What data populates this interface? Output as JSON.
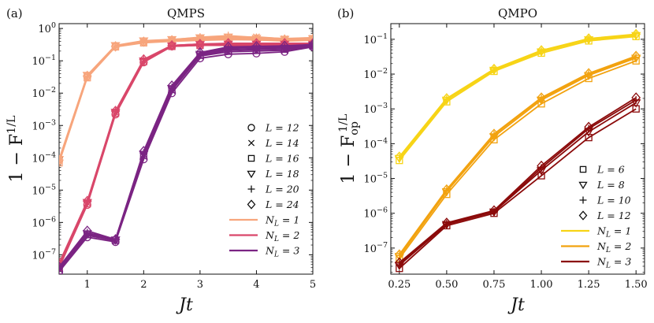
{
  "chart_data": [
    {
      "id": "a",
      "type": "line",
      "panel_label": "(a)",
      "title": "QMPS",
      "xlabel": "Jt",
      "ylabel": "1 − F^{1/L}",
      "ylabel_parts": {
        "base": "1 − F",
        "sup": "1/L"
      },
      "yscale": "log",
      "xlim": [
        0.5,
        5
      ],
      "ylim_exp": [
        -7.6,
        0.15
      ],
      "x_ticks": [
        1,
        2,
        3,
        4,
        5
      ],
      "x_tick_labels": [
        "1",
        "2",
        "3",
        "4",
        "5"
      ],
      "y_tick_exps": [
        -7,
        -6,
        -5,
        -4,
        -3,
        -2,
        -1,
        0
      ],
      "y_tick_labels": [
        "10^-7",
        "10^-6",
        "10^-5",
        "10^-4",
        "10^-3",
        "10^-2",
        "10^-1",
        "10^0"
      ],
      "x": [
        0.5,
        1,
        1.5,
        2,
        2.5,
        3,
        3.5,
        4,
        4.5,
        5
      ],
      "colors": {
        "1": "#f7a57c",
        "2": "#d9476a",
        "3": "#7b2483"
      },
      "series": [
        {
          "name": "NL=1, L=12",
          "NL": 1,
          "L": 12,
          "marker": "circle",
          "values": [
            8e-05,
            0.032,
            0.28,
            0.38,
            0.42,
            0.45,
            0.47,
            0.45,
            0.42,
            0.44
          ]
        },
        {
          "name": "NL=1, L=14",
          "NL": 1,
          "L": 14,
          "marker": "x",
          "values": [
            8.5e-05,
            0.035,
            0.29,
            0.4,
            0.44,
            0.5,
            0.52,
            0.55,
            0.48,
            0.5
          ]
        },
        {
          "name": "NL=1, L=16",
          "NL": 1,
          "L": 16,
          "marker": "square",
          "values": [
            7e-05,
            0.03,
            0.27,
            0.36,
            0.4,
            0.43,
            0.45,
            0.44,
            0.41,
            0.43
          ]
        },
        {
          "name": "NL=1, L=18",
          "NL": 1,
          "L": 18,
          "marker": "triangle",
          "values": [
            9e-05,
            0.036,
            0.3,
            0.42,
            0.46,
            0.52,
            0.55,
            0.5,
            0.47,
            0.49
          ]
        },
        {
          "name": "NL=1, L=20",
          "NL": 1,
          "L": 20,
          "marker": "plus",
          "values": [
            8e-05,
            0.033,
            0.29,
            0.41,
            0.45,
            0.54,
            0.6,
            0.53,
            0.49,
            0.52
          ]
        },
        {
          "name": "NL=1, L=24",
          "NL": 1,
          "L": 24,
          "marker": "diamond",
          "values": [
            8.5e-05,
            0.034,
            0.28,
            0.39,
            0.43,
            0.48,
            0.5,
            0.48,
            0.45,
            0.47
          ]
        },
        {
          "name": "NL=2, L=12",
          "NL": 2,
          "L": 12,
          "marker": "circle",
          "values": [
            4e-08,
            3.5e-06,
            0.0022,
            0.09,
            0.28,
            0.3,
            0.3,
            0.3,
            0.3,
            0.3
          ]
        },
        {
          "name": "NL=2, L=14",
          "NL": 2,
          "L": 14,
          "marker": "x",
          "values": [
            4.5e-08,
            4e-06,
            0.0025,
            0.1,
            0.29,
            0.31,
            0.32,
            0.32,
            0.32,
            0.32
          ]
        },
        {
          "name": "NL=2, L=16",
          "NL": 2,
          "L": 16,
          "marker": "square",
          "values": [
            4e-08,
            3.8e-06,
            0.0024,
            0.095,
            0.28,
            0.3,
            0.31,
            0.31,
            0.31,
            0.31
          ]
        },
        {
          "name": "NL=2, L=18",
          "NL": 2,
          "L": 18,
          "marker": "triangle",
          "values": [
            5e-08,
            4.2e-06,
            0.0026,
            0.1,
            0.29,
            0.32,
            0.33,
            0.33,
            0.33,
            0.33
          ]
        },
        {
          "name": "NL=2, L=20",
          "NL": 2,
          "L": 20,
          "marker": "plus",
          "values": [
            5e-08,
            4.4e-06,
            0.0027,
            0.11,
            0.3,
            0.33,
            0.34,
            0.34,
            0.34,
            0.34
          ]
        },
        {
          "name": "NL=2, L=24",
          "NL": 2,
          "L": 24,
          "marker": "diamond",
          "values": [
            5.5e-08,
            4.6e-06,
            0.0028,
            0.11,
            0.3,
            0.33,
            0.35,
            0.35,
            0.35,
            0.35
          ]
        },
        {
          "name": "NL=3, L=12",
          "NL": 3,
          "L": 12,
          "marker": "circle",
          "values": [
            3e-08,
            3.5e-07,
            2.5e-07,
            9e-05,
            0.01,
            0.12,
            0.16,
            0.17,
            0.19,
            0.27
          ]
        },
        {
          "name": "NL=3, L=14",
          "NL": 3,
          "L": 14,
          "marker": "x",
          "values": [
            3.5e-08,
            4e-07,
            2.7e-07,
            0.00011,
            0.012,
            0.14,
            0.19,
            0.2,
            0.21,
            0.28
          ]
        },
        {
          "name": "NL=3, L=16",
          "NL": 3,
          "L": 16,
          "marker": "square",
          "values": [
            3.2e-08,
            4.2e-07,
            2.8e-07,
            0.00012,
            0.013,
            0.15,
            0.21,
            0.22,
            0.23,
            0.29
          ]
        },
        {
          "name": "NL=3, L=18",
          "NL": 3,
          "L": 18,
          "marker": "triangle",
          "values": [
            3.8e-08,
            4.5e-07,
            2.9e-07,
            0.00013,
            0.014,
            0.16,
            0.23,
            0.24,
            0.25,
            0.3
          ]
        },
        {
          "name": "NL=3, L=20",
          "NL": 3,
          "L": 20,
          "marker": "plus",
          "values": [
            4e-08,
            4.8e-07,
            3e-07,
            0.00014,
            0.015,
            0.17,
            0.25,
            0.26,
            0.27,
            0.31
          ]
        },
        {
          "name": "NL=3, L=24",
          "NL": 3,
          "L": 24,
          "marker": "diamond",
          "values": [
            4.2e-08,
            5.5e-07,
            3e-07,
            0.00016,
            0.017,
            0.18,
            0.27,
            0.28,
            0.29,
            0.32
          ]
        }
      ],
      "legend": {
        "position": "lower-right",
        "markers": [
          {
            "marker": "circle",
            "label": "L = 12"
          },
          {
            "marker": "x",
            "label": "L = 14"
          },
          {
            "marker": "square",
            "label": "L = 16"
          },
          {
            "marker": "triangle",
            "label": "L = 18"
          },
          {
            "marker": "plus",
            "label": "L = 20"
          },
          {
            "marker": "diamond",
            "label": "L = 24"
          }
        ],
        "lines": [
          {
            "NL": 1,
            "label": "N_L = 1"
          },
          {
            "NL": 2,
            "label": "N_L = 2"
          },
          {
            "NL": 3,
            "label": "N_L = 3"
          }
        ]
      }
    },
    {
      "id": "b",
      "type": "line",
      "panel_label": "(b)",
      "title": "QMPO",
      "xlabel": "Jt",
      "ylabel": "1 − F_op^{1/L}",
      "ylabel_parts": {
        "base": "1 − F",
        "sub": "op",
        "sup": "1/L"
      },
      "yscale": "log",
      "xlim": [
        0.205,
        1.545
      ],
      "ylim_exp": [
        -7.75,
        -0.55
      ],
      "x_ticks": [
        0.25,
        0.5,
        0.75,
        1.0,
        1.25,
        1.5
      ],
      "x_tick_labels": [
        "0.25",
        "0.50",
        "0.75",
        "1.00",
        "1.25",
        "1.50"
      ],
      "y_tick_exps": [
        -7,
        -6,
        -5,
        -4,
        -3,
        -2,
        -1
      ],
      "y_tick_labels": [
        "10^-7",
        "10^-6",
        "10^-5",
        "10^-4",
        "10^-3",
        "10^-2",
        "10^-1"
      ],
      "x": [
        0.25,
        0.5,
        0.75,
        1.0,
        1.25,
        1.5
      ],
      "colors": {
        "1": "#f7d416",
        "2": "#f2a20f",
        "3": "#8b0a0a"
      },
      "series": [
        {
          "name": "NL=1, L=6",
          "NL": 1,
          "L": 6,
          "marker": "square",
          "values": [
            3.3e-05,
            0.0016,
            0.012,
            0.04,
            0.09,
            0.12
          ]
        },
        {
          "name": "NL=1, L=8",
          "NL": 1,
          "L": 8,
          "marker": "triangle",
          "values": [
            3.8e-05,
            0.0018,
            0.013,
            0.044,
            0.098,
            0.13
          ]
        },
        {
          "name": "NL=1, L=10",
          "NL": 1,
          "L": 10,
          "marker": "plus",
          "values": [
            4e-05,
            0.0019,
            0.0135,
            0.046,
            0.102,
            0.135
          ]
        },
        {
          "name": "NL=1, L=12",
          "NL": 1,
          "L": 12,
          "marker": "diamond",
          "values": [
            4.2e-05,
            0.002,
            0.014,
            0.048,
            0.105,
            0.14
          ]
        },
        {
          "name": "NL=2, L=6",
          "NL": 2,
          "L": 6,
          "marker": "square",
          "values": [
            5e-08,
            3.5e-06,
            0.00013,
            0.0014,
            0.0075,
            0.024
          ]
        },
        {
          "name": "NL=2, L=8",
          "NL": 2,
          "L": 8,
          "marker": "triangle",
          "values": [
            5.8e-08,
            4.2e-06,
            0.00016,
            0.0018,
            0.0092,
            0.029
          ]
        },
        {
          "name": "NL=2, L=10",
          "NL": 2,
          "L": 10,
          "marker": "plus",
          "values": [
            6.2e-08,
            4.6e-06,
            0.00018,
            0.002,
            0.01,
            0.031
          ]
        },
        {
          "name": "NL=2, L=12",
          "NL": 2,
          "L": 12,
          "marker": "diamond",
          "values": [
            6.5e-08,
            4.8e-06,
            0.00019,
            0.0021,
            0.0105,
            0.033
          ]
        },
        {
          "name": "NL=3, L=6",
          "NL": 3,
          "L": 6,
          "marker": "square",
          "values": [
            2.6e-08,
            4.4e-07,
            1e-06,
            1.2e-05,
            0.00015,
            0.001
          ]
        },
        {
          "name": "NL=3, L=8",
          "NL": 3,
          "L": 8,
          "marker": "triangle",
          "values": [
            3.2e-08,
            4.8e-07,
            1.1e-06,
            1.7e-05,
            0.00022,
            0.0015
          ]
        },
        {
          "name": "NL=3, L=10",
          "NL": 3,
          "L": 10,
          "marker": "plus",
          "values": [
            3.5e-08,
            5e-07,
            1.1e-06,
            2e-05,
            0.00027,
            0.0018
          ]
        },
        {
          "name": "NL=3, L=12",
          "NL": 3,
          "L": 12,
          "marker": "diamond",
          "values": [
            3.8e-08,
            5.3e-07,
            1.2e-06,
            2.3e-05,
            0.0003,
            0.0021
          ]
        }
      ],
      "legend": {
        "position": "lower-right",
        "markers": [
          {
            "marker": "square",
            "label": "L = 6"
          },
          {
            "marker": "triangle",
            "label": "L = 8"
          },
          {
            "marker": "plus",
            "label": "L = 10"
          },
          {
            "marker": "diamond",
            "label": "L = 12"
          }
        ],
        "lines": [
          {
            "NL": 1,
            "label": "N_L = 1"
          },
          {
            "NL": 2,
            "label": "N_L = 2"
          },
          {
            "NL": 3,
            "label": "N_L = 3"
          }
        ]
      }
    }
  ]
}
